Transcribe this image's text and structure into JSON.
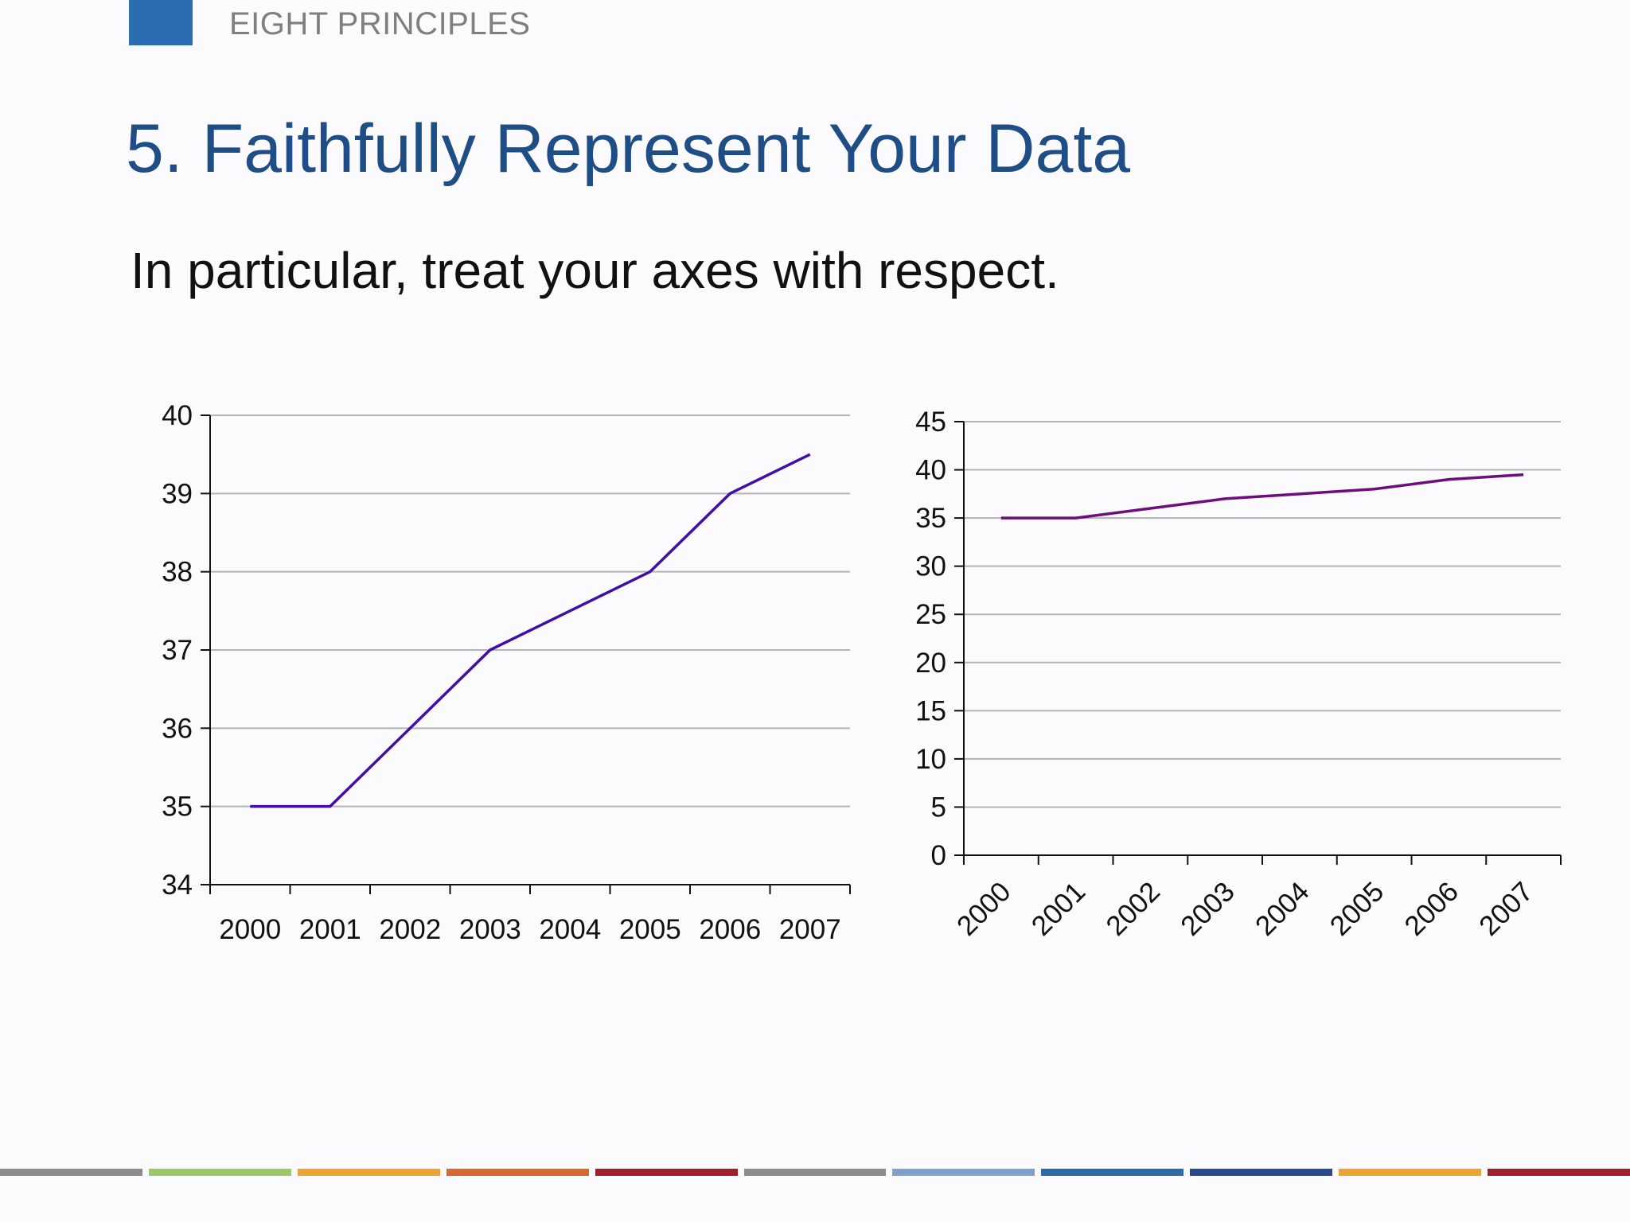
{
  "header": {
    "section": "EIGHT PRINCIPLES",
    "accent_color": "#2a6db0"
  },
  "slide": {
    "title": "5. Faithfully Represent Your Data",
    "subtitle": "In particular, treat your axes with respect."
  },
  "chart_data": [
    {
      "type": "line",
      "categories": [
        "2000",
        "2001",
        "2002",
        "2003",
        "2004",
        "2005",
        "2006",
        "2007"
      ],
      "series": [
        {
          "values": [
            35,
            35,
            36,
            37,
            37.5,
            38,
            39,
            39.5
          ],
          "color": "#3f0fa8"
        }
      ],
      "ylim": [
        34,
        40
      ],
      "yticks": [
        34,
        35,
        36,
        37,
        38,
        39,
        40
      ],
      "grid": true,
      "xlabel_rotation": 0
    },
    {
      "type": "line",
      "categories": [
        "2000",
        "2001",
        "2002",
        "2003",
        "2004",
        "2005",
        "2006",
        "2007"
      ],
      "series": [
        {
          "values": [
            35,
            35,
            36,
            37,
            37.5,
            38,
            39,
            39.5
          ],
          "color": "#6d0d7e"
        }
      ],
      "ylim": [
        0,
        45
      ],
      "yticks": [
        0,
        5,
        10,
        15,
        20,
        25,
        30,
        35,
        40,
        45
      ],
      "grid": true,
      "xlabel_rotation": -45
    }
  ],
  "footer": {
    "bar_colors": [
      "#8c8c8c",
      "#9ac865",
      "#eda331",
      "#d76a2a",
      "#a11f2b",
      "#8c8c8c",
      "#7f9fcc",
      "#2d6aaa",
      "#2a4a8e",
      "#eda331",
      "#a11f2b"
    ]
  }
}
